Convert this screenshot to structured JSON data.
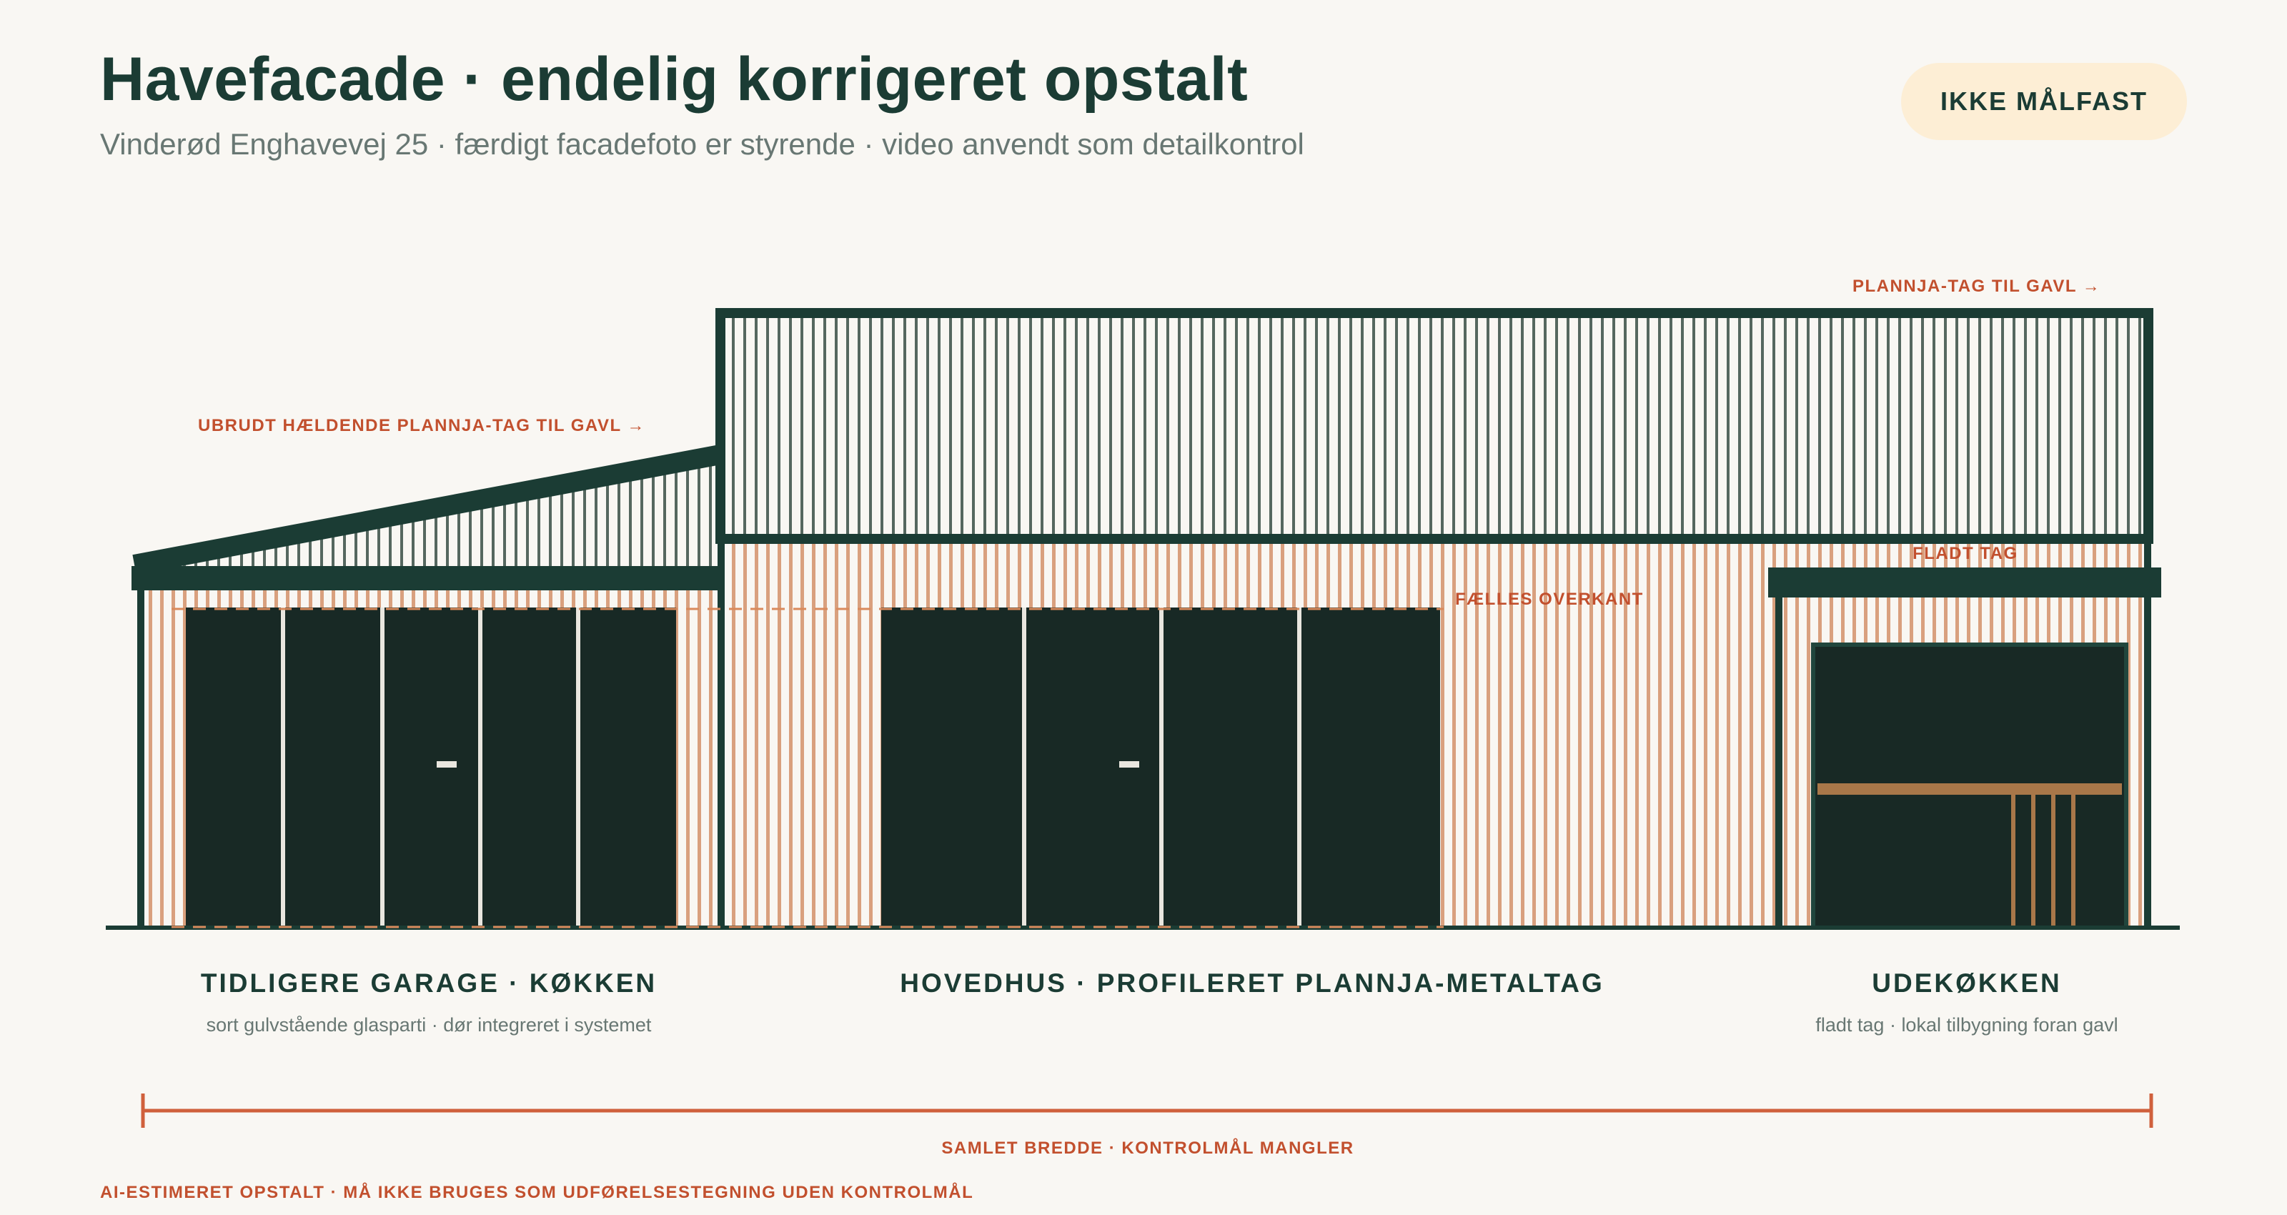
{
  "header": {
    "title": "Havefacade · endelig korrigeret opstalt",
    "subtitle": "Vinderød Enghavevej 25 · færdigt facadefoto er styrende · video anvendt som detailkontrol",
    "badge": "IKKE MÅLFAST"
  },
  "annotations": {
    "sloped_roof": "UBRUDT HÆLDENDE PLANNJA-TAG TIL GAVL →",
    "main_roof": "PLANNJA-TAG TIL GAVL →",
    "flat_roof": "FLADT TAG",
    "common_top": "FÆLLES OVERKANT"
  },
  "sections": {
    "left": {
      "title": "TIDLIGERE GARAGE · KØKKEN",
      "caption": "sort gulvstående glasparti · dør integreret i systemet"
    },
    "middle": {
      "title": "HOVEDHUS · PROFILERET PLANNJA-METALTAG",
      "caption": ""
    },
    "right": {
      "title": "UDEKØKKEN",
      "caption": "fladt tag · lokal tilbygning foran gavl"
    }
  },
  "dimension": {
    "label": "SAMLET BREDDE · KONTROLMÅL MANGLER"
  },
  "footer": {
    "note": "AI-ESTIMERET OPSTALT · MÅ IKKE BRUGES SOM UDFØRELSESTEGNING UDEN KONTROLMÅL"
  },
  "colors": {
    "dark_green": "#1b3c34",
    "glass": "#182925",
    "cladding": "#d9a07e",
    "accent_red": "#c2502e",
    "wood": "#a87749",
    "badge_bg": "#fdeed5",
    "background": "#f9f7f3"
  }
}
